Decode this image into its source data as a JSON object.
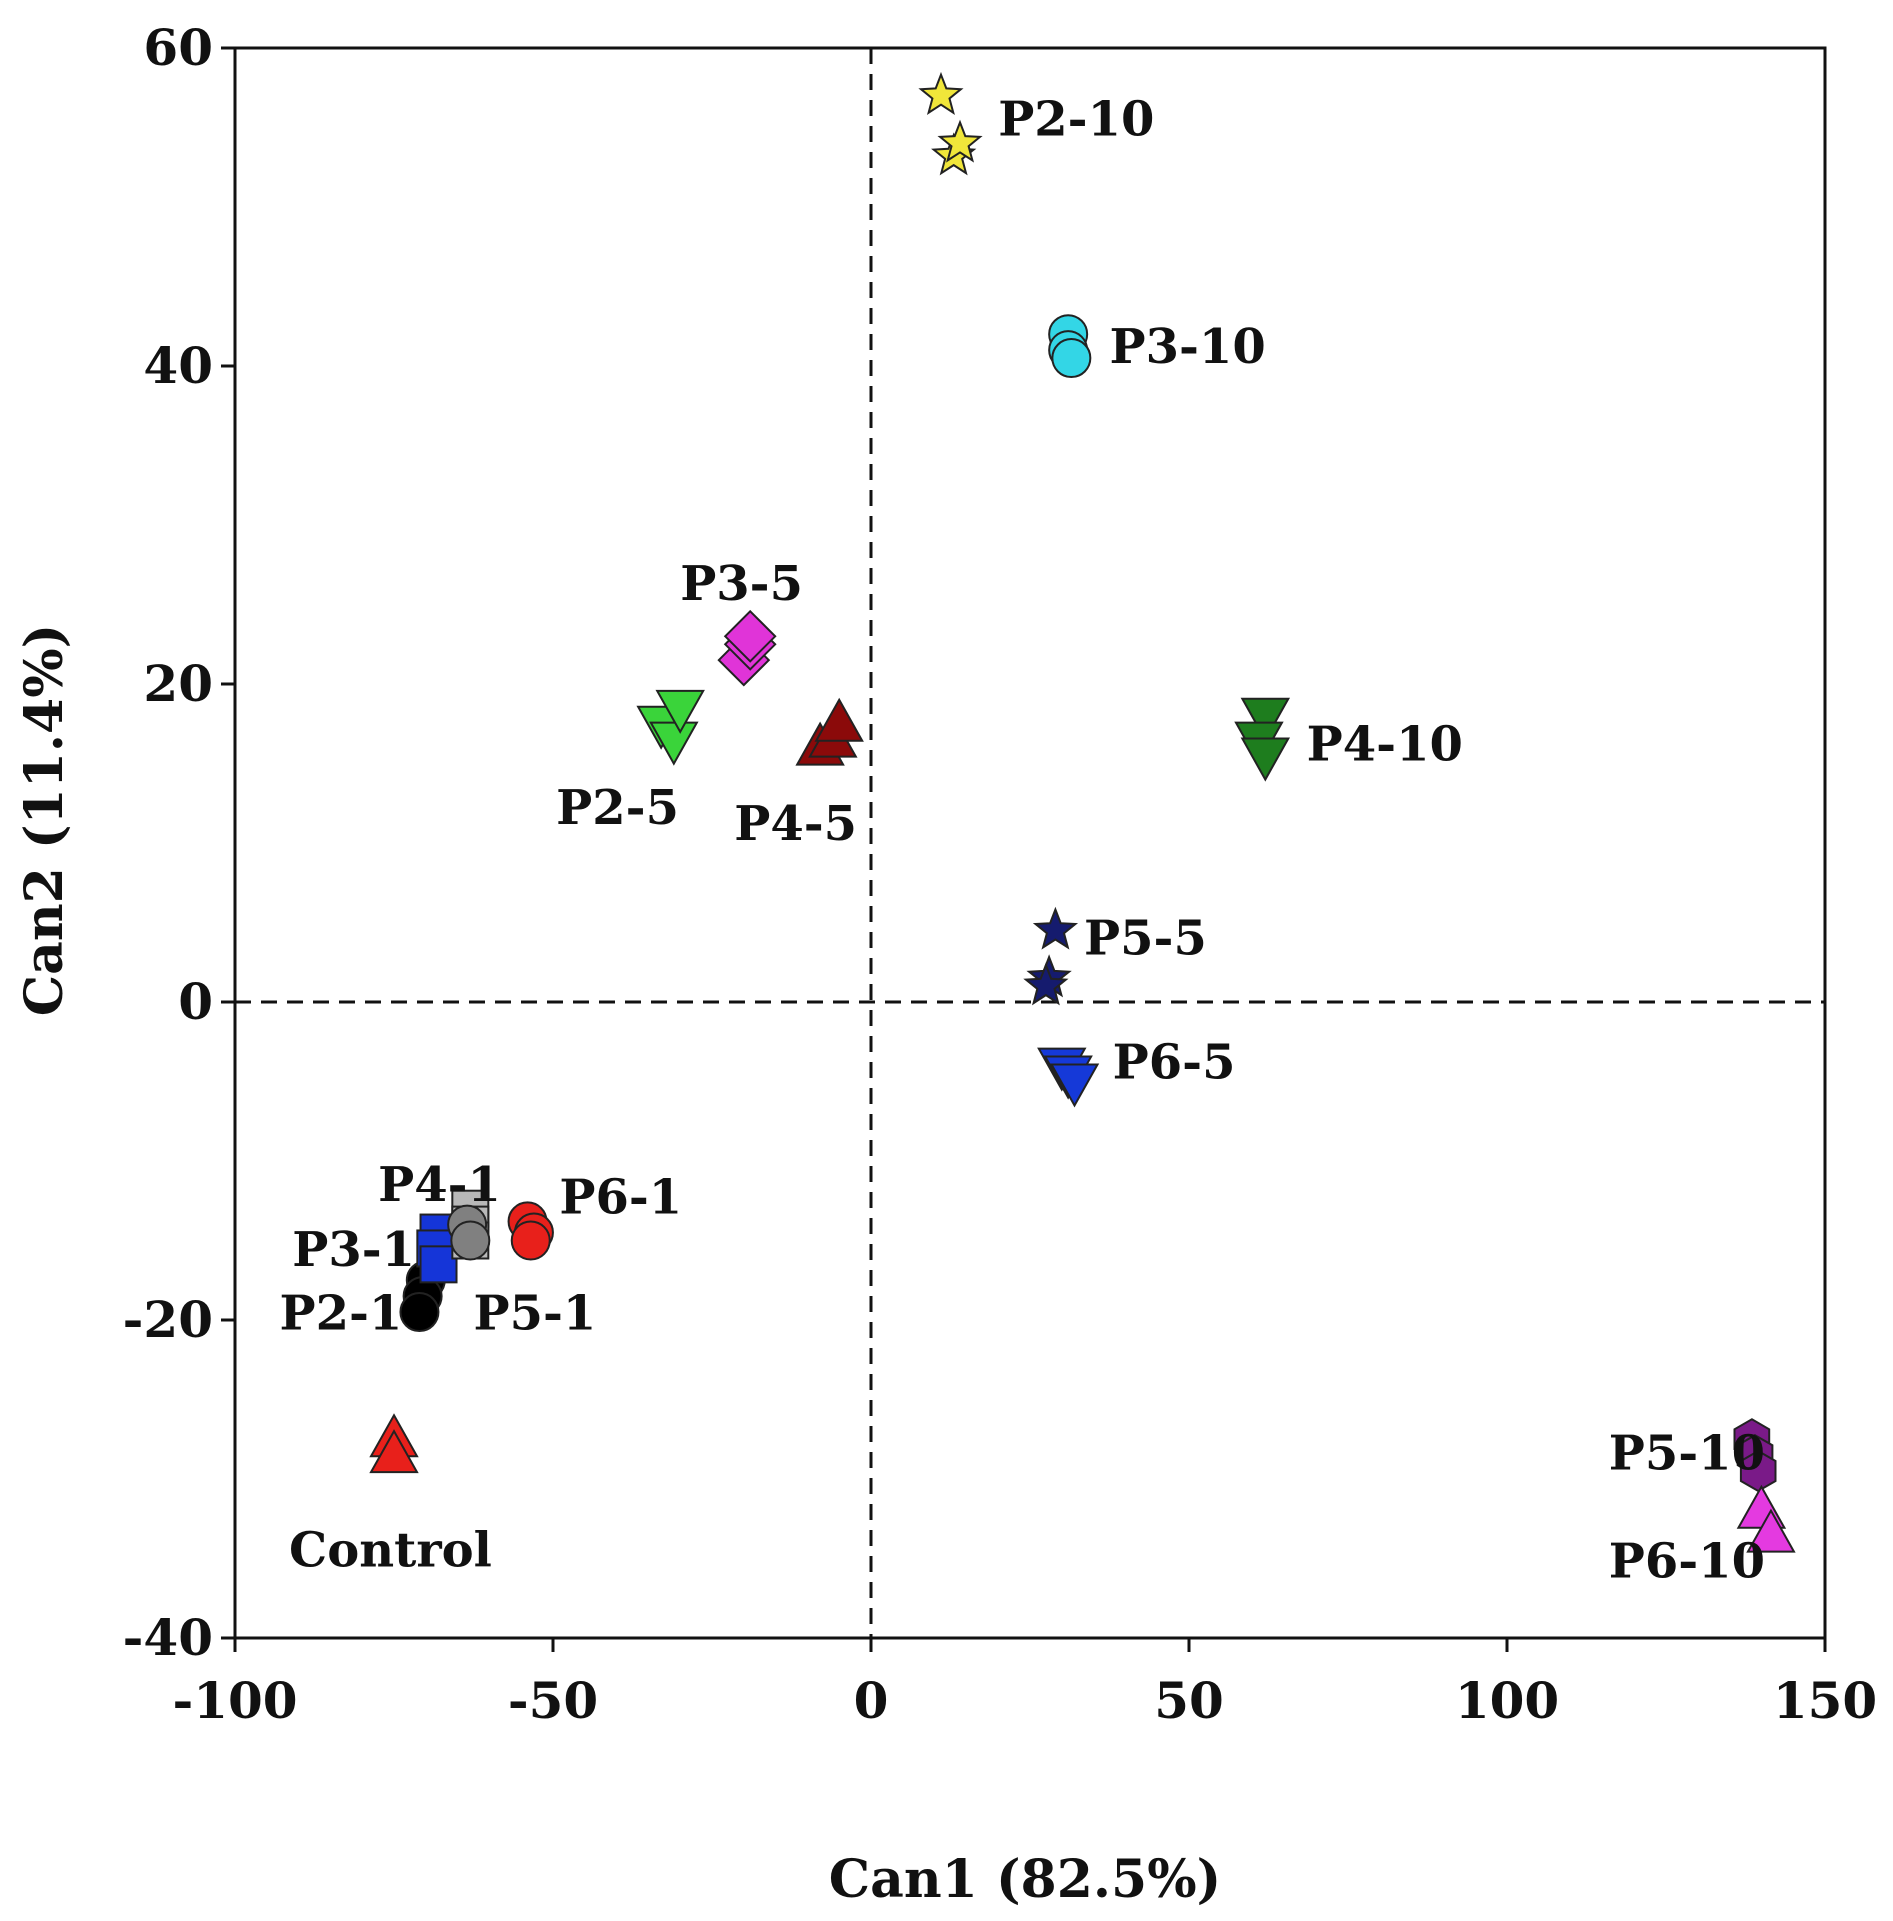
{
  "chart_data": {
    "type": "scatter",
    "title": "",
    "xlabel": "Can1 (82.5%)",
    "ylabel": "Can2 (11.4%)",
    "xlim": [
      -100,
      150
    ],
    "ylim": [
      -40,
      60
    ],
    "xticks": [
      -100,
      -50,
      0,
      50,
      100,
      150
    ],
    "yticks": [
      -40,
      -20,
      0,
      20,
      40,
      60
    ],
    "xtick_labels": [
      "-100",
      "-50",
      "0",
      "50",
      "100",
      "150"
    ],
    "ytick_labels": [
      "-40",
      "-20",
      "0",
      "20",
      "40",
      "60"
    ],
    "grid": false,
    "reference_lines": {
      "x": 0,
      "y": 0,
      "style": "dashed"
    },
    "series": [
      {
        "name": "Control",
        "marker": "triangle-up",
        "color": "#e8201b",
        "points": [
          [
            -75,
            -27.5
          ],
          [
            -75,
            -28.5
          ]
        ]
      },
      {
        "name": "P2-1",
        "marker": "circle",
        "color": "#000000",
        "points": [
          [
            -70,
            -17.5
          ],
          [
            -70.5,
            -18.5
          ],
          [
            -71,
            -19.5
          ]
        ]
      },
      {
        "name": "P3-1",
        "marker": "square",
        "color": "#1535d8",
        "points": [
          [
            -68,
            -14.5
          ],
          [
            -68.5,
            -15.5
          ],
          [
            -68,
            -16.5
          ]
        ]
      },
      {
        "name": "P4-1",
        "marker": "square",
        "color": "#b8b8b8",
        "points": [
          [
            -63,
            -13
          ],
          [
            -63,
            -14
          ],
          [
            -63,
            -15
          ]
        ]
      },
      {
        "name": "P5-1",
        "marker": "circle",
        "color": "#808080",
        "points": [
          [
            -63.5,
            -14
          ],
          [
            -63,
            -15
          ]
        ]
      },
      {
        "name": "P6-1",
        "marker": "circle",
        "color": "#e8201b",
        "points": [
          [
            -54,
            -13.8
          ],
          [
            -53,
            -14.5
          ],
          [
            -53.5,
            -15
          ]
        ]
      },
      {
        "name": "P2-5",
        "marker": "triangle-down",
        "color": "#3ad43a",
        "points": [
          [
            -33,
            17.5
          ],
          [
            -31,
            16.5
          ],
          [
            -30,
            18.5
          ]
        ]
      },
      {
        "name": "P3-5",
        "marker": "diamond",
        "color": "#e034d8",
        "points": [
          [
            -20,
            21.5
          ],
          [
            -19,
            22.5
          ],
          [
            -19,
            23
          ]
        ]
      },
      {
        "name": "P4-5",
        "marker": "triangle-up",
        "color": "#8b0a0a",
        "points": [
          [
            -8,
            16
          ],
          [
            -6,
            16.5
          ],
          [
            -5,
            17.5
          ]
        ]
      },
      {
        "name": "P2-10",
        "marker": "star",
        "color": "#f0e63a",
        "points": [
          [
            11,
            57
          ],
          [
            13,
            53.2
          ],
          [
            14,
            54
          ]
        ]
      },
      {
        "name": "P3-10",
        "marker": "circle",
        "color": "#33d6e6",
        "points": [
          [
            31,
            42
          ],
          [
            31,
            41
          ],
          [
            31.5,
            40.5
          ]
        ]
      },
      {
        "name": "P4-10",
        "marker": "triangle-down",
        "color": "#1e7d1e",
        "points": [
          [
            62,
            18
          ],
          [
            61,
            16.5
          ],
          [
            62,
            15.5
          ]
        ]
      },
      {
        "name": "P5-5",
        "marker": "star",
        "color": "#151b6e",
        "points": [
          [
            29,
            4.5
          ],
          [
            28,
            1.5
          ],
          [
            27.5,
            1
          ]
        ]
      },
      {
        "name": "P6-5",
        "marker": "triangle-down",
        "color": "#1539d8",
        "points": [
          [
            30,
            -4
          ],
          [
            31,
            -4.5
          ],
          [
            32,
            -5
          ]
        ]
      },
      {
        "name": "P5-10",
        "marker": "hexagon",
        "color": "#7a1a88",
        "points": [
          [
            138.5,
            -27.5
          ],
          [
            139,
            -28.5
          ],
          [
            139.5,
            -29.5
          ]
        ]
      },
      {
        "name": "P6-10",
        "marker": "triangle-up",
        "color": "#e43ae0",
        "points": [
          [
            140,
            -32
          ],
          [
            141.5,
            -33.5
          ]
        ]
      }
    ],
    "annotations": [
      {
        "text": "P2-10",
        "x": 20,
        "y": 55.5
      },
      {
        "text": "P3-10",
        "x": 37.5,
        "y": 41.2
      },
      {
        "text": "P3-5",
        "x": -30,
        "y": 26.3
      },
      {
        "text": "P2-5",
        "x": -49.5,
        "y": 12.2
      },
      {
        "text": "P4-5",
        "x": -21.5,
        "y": 11.2
      },
      {
        "text": "P4-10",
        "x": 68.5,
        "y": 16.2
      },
      {
        "text": "P5-5",
        "x": 33.5,
        "y": 4
      },
      {
        "text": "P6-5",
        "x": 38,
        "y": -3.8
      },
      {
        "text": "P4-1",
        "x": -77.5,
        "y": -11.5
      },
      {
        "text": "P6-1",
        "x": -49,
        "y": -12.3
      },
      {
        "text": "P3-1",
        "x": -91,
        "y": -15.6
      },
      {
        "text": "P2-1",
        "x": -93,
        "y": -19.6
      },
      {
        "text": "P5-1",
        "x": -62.5,
        "y": -19.6
      },
      {
        "text": "Control",
        "x": -91.5,
        "y": -34.5
      },
      {
        "text": "P5-10",
        "x": 116,
        "y": -28.4
      },
      {
        "text": "P6-10",
        "x": 116,
        "y": -35.2
      }
    ]
  }
}
